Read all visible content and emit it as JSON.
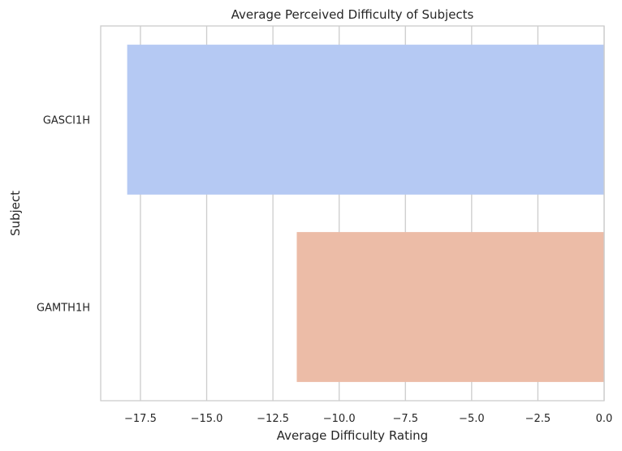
{
  "chart_data": {
    "type": "bar",
    "orientation": "horizontal",
    "title": "Average Perceived Difficulty of Subjects",
    "xlabel": "Average Difficulty Rating",
    "ylabel": "Subject",
    "categories": [
      "GASCI1H",
      "GAMTH1H"
    ],
    "values": [
      -18.0,
      -11.6
    ],
    "colors": [
      "#b5c9f3",
      "#ecbca7"
    ],
    "xlim": [
      -19.0,
      0.0
    ],
    "xticks": [
      -17.5,
      -15.0,
      -12.5,
      -10.0,
      -7.5,
      -5.0,
      -2.5,
      0.0
    ],
    "xtick_labels": [
      "−17.5",
      "−15.0",
      "−12.5",
      "−10.0",
      "−7.5",
      "−5.0",
      "−2.5",
      "0.0"
    ],
    "grid": "vertical",
    "legend": "none"
  }
}
